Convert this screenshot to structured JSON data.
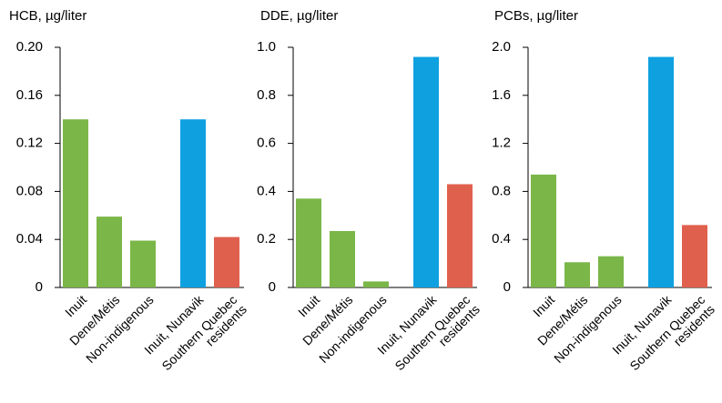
{
  "chart_data": [
    {
      "type": "bar",
      "ylabel": "HCB, µg/liter",
      "categories": [
        "Inuit",
        "Dene/Métis",
        "Non-indigenous",
        "Inuit, Nunavik",
        "Southern Quebec\nresidents"
      ],
      "values": [
        0.14,
        0.059,
        0.039,
        0.14,
        0.042
      ],
      "colors": [
        "#7ab648",
        "#7ab648",
        "#7ab648",
        "#0fa0e0",
        "#e0604e"
      ],
      "ylim": [
        0,
        0.2
      ],
      "yticks": [
        0,
        0.04,
        0.08,
        0.12,
        0.16,
        {
          "value": 0.2,
          "label": "0.20"
        }
      ]
    },
    {
      "type": "bar",
      "ylabel": "DDE, µg/liter",
      "categories": [
        "Inuit",
        "Dene/Métis",
        "Non-indigenous",
        "Inuit, Nunavik",
        "Southern Quebec\nresidents"
      ],
      "values": [
        0.37,
        0.235,
        0.025,
        0.96,
        0.43
      ],
      "colors": [
        "#7ab648",
        "#7ab648",
        "#7ab648",
        "#0fa0e0",
        "#e0604e"
      ],
      "ylim": [
        0,
        1
      ],
      "yticks": [
        0,
        0.2,
        0.4,
        0.6,
        0.8,
        {
          "value": 1,
          "label": "1.0"
        }
      ]
    },
    {
      "type": "bar",
      "ylabel": "PCBs, µg/liter",
      "categories": [
        "Inuit",
        "Dene/Métis",
        "Non-indigenous",
        "Inuit, Nunavik",
        "Southern Quebec\nresidents"
      ],
      "values": [
        0.94,
        0.21,
        0.26,
        1.92,
        0.52
      ],
      "colors": [
        "#7ab648",
        "#7ab648",
        "#7ab648",
        "#0fa0e0",
        "#e0604e"
      ],
      "ylim": [
        0,
        2
      ],
      "yticks": [
        0,
        0.4,
        0.8,
        1.2,
        1.6,
        {
          "value": 2,
          "label": "2.0"
        }
      ]
    }
  ]
}
